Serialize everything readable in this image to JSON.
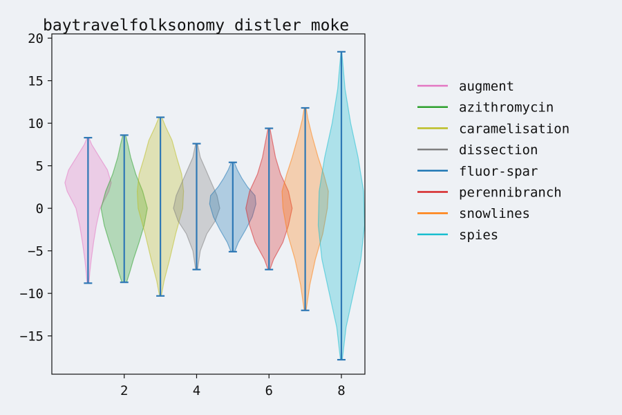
{
  "chart_data": {
    "type": "violin",
    "title": "baytravelfolksonomy distler moke",
    "xlabel": "",
    "ylabel": "",
    "xlim": [
      0.0,
      8.65
    ],
    "ylim": [
      -19.5,
      20.5
    ],
    "xticks": [
      2,
      4,
      6,
      8
    ],
    "yticks": [
      -15,
      -10,
      -5,
      0,
      5,
      10,
      15,
      20
    ],
    "grid": false,
    "legend_position": "right",
    "whisker_color": "#2e78b5",
    "series": [
      {
        "name": "augment",
        "position": 1,
        "color": "#e377c2",
        "min": -8.8,
        "max": 8.3,
        "density": [
          [
            -8.8,
            0.02
          ],
          [
            -7.5,
            0.04
          ],
          [
            -6,
            0.07
          ],
          [
            -4,
            0.12
          ],
          [
            -2,
            0.18
          ],
          [
            0,
            0.26
          ],
          [
            2,
            0.45
          ],
          [
            3,
            0.5
          ],
          [
            4.5,
            0.42
          ],
          [
            6,
            0.25
          ],
          [
            7.5,
            0.08
          ],
          [
            8.3,
            0.02
          ]
        ]
      },
      {
        "name": "azithromycin",
        "position": 2,
        "color": "#2ca02c",
        "min": -8.7,
        "max": 8.6,
        "density": [
          [
            -8.7,
            0.05
          ],
          [
            -7.5,
            0.12
          ],
          [
            -6,
            0.2
          ],
          [
            -4,
            0.32
          ],
          [
            -2,
            0.43
          ],
          [
            0,
            0.5
          ],
          [
            2,
            0.4
          ],
          [
            4,
            0.25
          ],
          [
            6,
            0.14
          ],
          [
            7.5,
            0.08
          ],
          [
            8.6,
            0.03
          ]
        ]
      },
      {
        "name": "caramelisation",
        "position": 3,
        "color": "#bcbd22",
        "min": -10.3,
        "max": 10.7,
        "density": [
          [
            -10.3,
            0.02
          ],
          [
            -8.5,
            0.08
          ],
          [
            -6,
            0.2
          ],
          [
            -3,
            0.33
          ],
          [
            0,
            0.48
          ],
          [
            2,
            0.5
          ],
          [
            4,
            0.46
          ],
          [
            6,
            0.35
          ],
          [
            8,
            0.25
          ],
          [
            9.5,
            0.12
          ],
          [
            10.7,
            0.03
          ]
        ]
      },
      {
        "name": "dissection",
        "position": 4,
        "color": "#7f7f7f",
        "min": -7.2,
        "max": 7.6,
        "density": [
          [
            -7.2,
            0.02
          ],
          [
            -5,
            0.08
          ],
          [
            -3,
            0.22
          ],
          [
            -1.5,
            0.4
          ],
          [
            0,
            0.5
          ],
          [
            1.5,
            0.44
          ],
          [
            3,
            0.32
          ],
          [
            4.5,
            0.2
          ],
          [
            6,
            0.08
          ],
          [
            7.6,
            0.02
          ]
        ]
      },
      {
        "name": "fluor-spar",
        "position": 5,
        "color": "#1f77b4",
        "min": -5.1,
        "max": 5.4,
        "density": [
          [
            -5.1,
            0.04
          ],
          [
            -4,
            0.12
          ],
          [
            -2.5,
            0.28
          ],
          [
            -1,
            0.42
          ],
          [
            0.5,
            0.5
          ],
          [
            1.5,
            0.48
          ],
          [
            2.5,
            0.32
          ],
          [
            3.5,
            0.2
          ],
          [
            4.5,
            0.1
          ],
          [
            5.4,
            0.03
          ]
        ]
      },
      {
        "name": "perennibranch",
        "position": 6,
        "color": "#d62728",
        "min": -7.2,
        "max": 9.4,
        "density": [
          [
            -7.2,
            0.02
          ],
          [
            -6,
            0.1
          ],
          [
            -4,
            0.3
          ],
          [
            -2,
            0.42
          ],
          [
            0,
            0.5
          ],
          [
            2,
            0.42
          ],
          [
            4,
            0.25
          ],
          [
            6,
            0.14
          ],
          [
            8,
            0.07
          ],
          [
            9.4,
            0.02
          ]
        ]
      },
      {
        "name": "snowlines",
        "position": 7,
        "color": "#ff7f0e",
        "min": -12.0,
        "max": 11.8,
        "density": [
          [
            -12,
            0.02
          ],
          [
            -9,
            0.1
          ],
          [
            -6,
            0.22
          ],
          [
            -3,
            0.38
          ],
          [
            0,
            0.48
          ],
          [
            2,
            0.5
          ],
          [
            4,
            0.4
          ],
          [
            6,
            0.28
          ],
          [
            8.5,
            0.15
          ],
          [
            10.5,
            0.06
          ],
          [
            11.8,
            0.02
          ]
        ]
      },
      {
        "name": "spies",
        "position": 8,
        "color": "#17becf",
        "min": -17.8,
        "max": 18.4,
        "density": [
          [
            -17.8,
            0.02
          ],
          [
            -14,
            0.1
          ],
          [
            -10,
            0.26
          ],
          [
            -6,
            0.42
          ],
          [
            -2,
            0.5
          ],
          [
            2,
            0.48
          ],
          [
            6,
            0.36
          ],
          [
            10,
            0.2
          ],
          [
            14,
            0.08
          ],
          [
            18.4,
            0.01
          ]
        ]
      }
    ]
  }
}
